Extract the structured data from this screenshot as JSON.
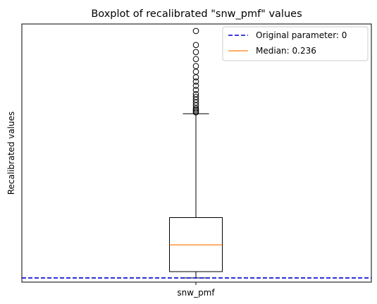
{
  "chart_data": {
    "type": "boxplot",
    "title": "Boxplot of recalibrated \"snw_pmf\" values",
    "xlabel": "",
    "ylabel": "Recalibrated values",
    "categories": [
      "snw_pmf"
    ],
    "y_tick_labels_visible": false,
    "grid": false,
    "legend_placement": "top-right",
    "series": [
      {
        "category": "snw_pmf",
        "whisker_low": 0.0,
        "q1": 0.045,
        "median": 0.236,
        "q3": 0.43,
        "whisker_high": 1.17,
        "outliers": [
          1.18,
          1.19,
          1.2,
          1.21,
          1.23,
          1.25,
          1.27,
          1.29,
          1.31,
          1.34,
          1.37,
          1.4,
          1.43,
          1.47,
          1.51,
          1.56,
          1.61,
          1.66,
          1.76
        ]
      }
    ],
    "reference_line": {
      "value": 0,
      "style": "dashed",
      "color": "#0000cc"
    },
    "median_color": "#ff7f0e",
    "ylim": [
      -0.03,
      1.81
    ],
    "legend": [
      {
        "label": "Original parameter: 0",
        "style": "dashed",
        "color": "#0000cc"
      },
      {
        "label": "Median: 0.236",
        "style": "solid",
        "color": "#ff7f0e"
      }
    ]
  }
}
